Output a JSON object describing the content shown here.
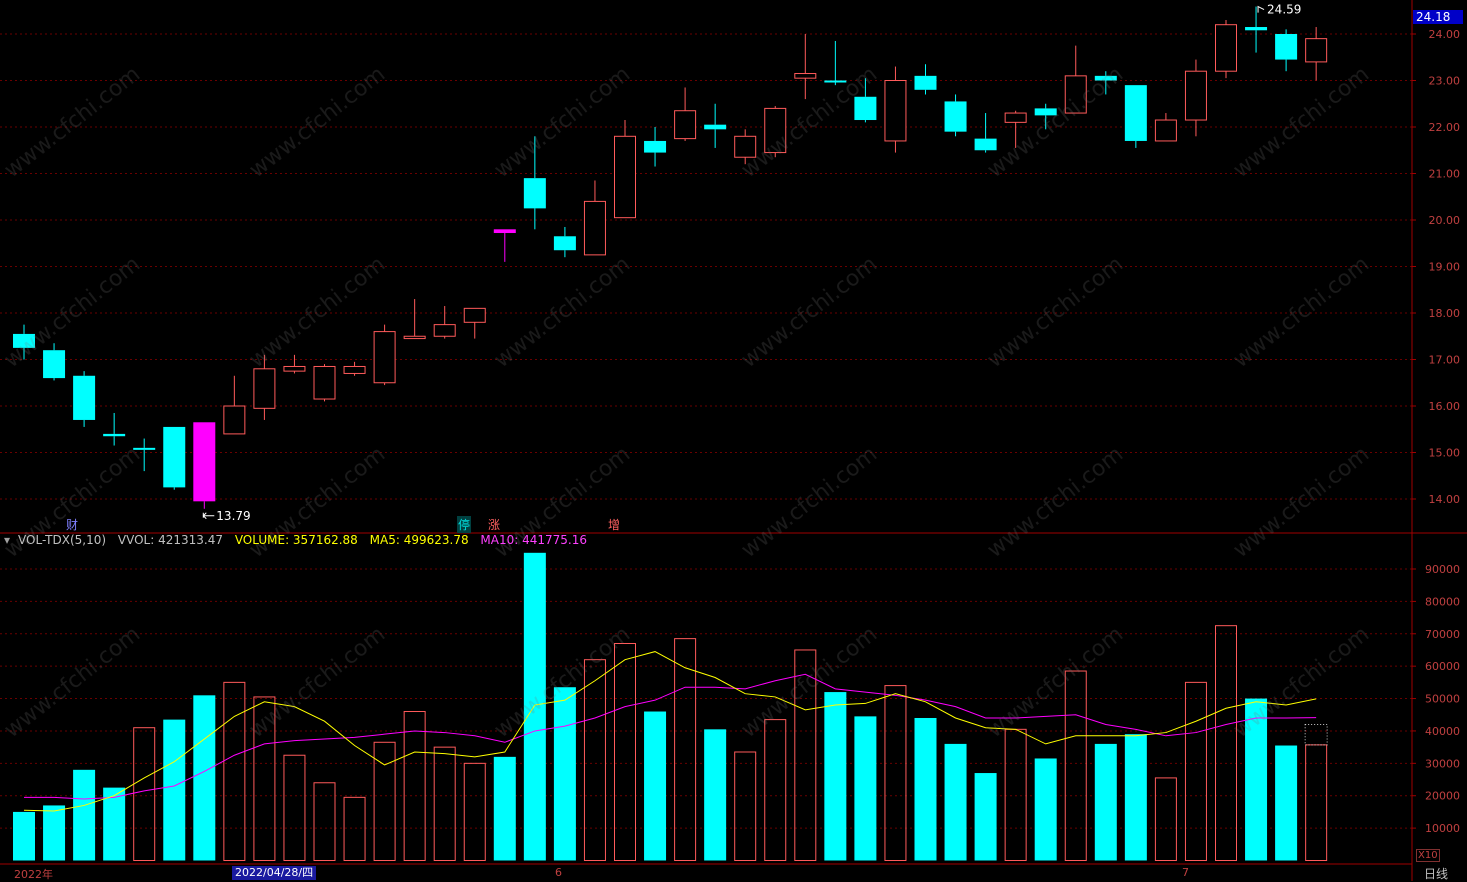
{
  "theme": {
    "up": "#ff5a5a",
    "down": "#00ffff",
    "flat": "#ffffff",
    "special": "#ff00ff",
    "grid": "#6a0000",
    "axis": "#a00000",
    "ma5": "#ffff00",
    "ma10": "#ff00ff"
  },
  "price_axis": {
    "labels": [
      "24.00",
      "23.00",
      "22.00",
      "21.00",
      "20.00",
      "19.00",
      "18.00",
      "17.00",
      "16.00",
      "15.00",
      "14.00"
    ]
  },
  "current_price": "24.18",
  "high_annotation": "24.59",
  "low_annotation": "13.79",
  "markers": [
    {
      "text": "财",
      "color": "#8080ff"
    },
    {
      "text": "停",
      "color": "#00c0c0"
    },
    {
      "text": "涨",
      "color": "#ff6060"
    },
    {
      "text": "增",
      "color": "#ff6060"
    }
  ],
  "volume_header": {
    "indicator": "VOL-TDX(5,10)",
    "vvol": "VVOL: 421313.47",
    "volume": "VOLUME: 357162.88",
    "ma5": "MA5: 499623.78",
    "ma10": "MA10: 441775.16"
  },
  "volume_axis": {
    "labels": [
      "90000",
      "80000",
      "70000",
      "60000",
      "50000",
      "40000",
      "30000",
      "20000",
      "10000"
    ],
    "unit": "X10"
  },
  "x_labels": {
    "year": "2022年",
    "date_box": "2022/04/28/四",
    "m6": "6",
    "m7": "7"
  },
  "period_label": "日线",
  "chart_data": {
    "type": "candlestick",
    "price_range": [
      13.45,
      24.45
    ],
    "volume_range": [
      0,
      100000
    ],
    "candles": [
      {
        "o": 17.55,
        "h": 17.75,
        "l": 17.0,
        "c": 17.25,
        "v": 15000
      },
      {
        "o": 17.2,
        "h": 17.35,
        "l": 16.55,
        "c": 16.6,
        "v": 17000
      },
      {
        "o": 16.65,
        "h": 16.75,
        "l": 15.55,
        "c": 15.7,
        "v": 28000
      },
      {
        "o": 15.4,
        "h": 15.85,
        "l": 15.15,
        "c": 15.35,
        "v": 22500
      },
      {
        "o": 15.1,
        "h": 15.3,
        "l": 14.6,
        "c": 15.1,
        "v": 41000
      },
      {
        "o": 15.55,
        "h": 15.55,
        "l": 14.2,
        "c": 14.25,
        "v": 43500
      },
      {
        "o": 15.65,
        "h": 15.65,
        "l": 13.79,
        "c": 13.95,
        "v": 51000,
        "special": true
      },
      {
        "o": 15.4,
        "h": 16.65,
        "l": 15.4,
        "c": 16.0,
        "v": 55000
      },
      {
        "o": 15.95,
        "h": 17.1,
        "l": 15.7,
        "c": 16.8,
        "v": 50500
      },
      {
        "o": 16.75,
        "h": 17.1,
        "l": 16.7,
        "c": 16.85,
        "v": 32500
      },
      {
        "o": 16.15,
        "h": 16.9,
        "l": 16.1,
        "c": 16.85,
        "v": 24000
      },
      {
        "o": 16.7,
        "h": 16.95,
        "l": 16.65,
        "c": 16.85,
        "v": 19500
      },
      {
        "o": 16.5,
        "h": 17.75,
        "l": 16.45,
        "c": 17.6,
        "v": 36500
      },
      {
        "o": 17.45,
        "h": 18.3,
        "l": 17.45,
        "c": 17.5,
        "v": 46000
      },
      {
        "o": 17.5,
        "h": 18.15,
        "l": 17.45,
        "c": 17.75,
        "v": 35000
      },
      {
        "o": 17.8,
        "h": 18.1,
        "l": 17.45,
        "c": 18.1,
        "v": 30000
      },
      {
        "o": 19.8,
        "h": 19.8,
        "l": 19.1,
        "c": 19.72,
        "v": 32000,
        "special": true
      },
      {
        "o": 20.9,
        "h": 21.8,
        "l": 19.8,
        "c": 20.25,
        "v": 95000
      },
      {
        "o": 19.65,
        "h": 19.85,
        "l": 19.2,
        "c": 19.35,
        "v": 53500
      },
      {
        "o": 19.25,
        "h": 20.85,
        "l": 19.25,
        "c": 20.4,
        "v": 62000
      },
      {
        "o": 20.05,
        "h": 22.15,
        "l": 20.05,
        "c": 21.8,
        "v": 67000
      },
      {
        "o": 21.7,
        "h": 22.0,
        "l": 21.15,
        "c": 21.45,
        "v": 46000
      },
      {
        "o": 21.75,
        "h": 22.85,
        "l": 21.7,
        "c": 22.35,
        "v": 68500
      },
      {
        "o": 22.05,
        "h": 22.5,
        "l": 21.55,
        "c": 21.95,
        "v": 40500
      },
      {
        "o": 21.35,
        "h": 21.95,
        "l": 21.2,
        "c": 21.8,
        "v": 33500
      },
      {
        "o": 21.45,
        "h": 22.45,
        "l": 21.35,
        "c": 22.4,
        "v": 43500
      },
      {
        "o": 23.05,
        "h": 24.0,
        "l": 22.6,
        "c": 23.15,
        "v": 65000
      },
      {
        "o": 23.0,
        "h": 23.85,
        "l": 22.9,
        "c": 22.98,
        "v": 52000
      },
      {
        "o": 22.65,
        "h": 23.05,
        "l": 22.1,
        "c": 22.15,
        "v": 44500
      },
      {
        "o": 21.7,
        "h": 23.3,
        "l": 21.45,
        "c": 23.0,
        "v": 54000
      },
      {
        "o": 23.1,
        "h": 23.35,
        "l": 22.7,
        "c": 22.8,
        "v": 44000
      },
      {
        "o": 22.55,
        "h": 22.7,
        "l": 21.8,
        "c": 21.9,
        "v": 36000
      },
      {
        "o": 21.75,
        "h": 22.3,
        "l": 21.45,
        "c": 21.5,
        "v": 27000
      },
      {
        "o": 22.1,
        "h": 22.35,
        "l": 21.55,
        "c": 22.3,
        "v": 40500
      },
      {
        "o": 22.4,
        "h": 22.5,
        "l": 21.95,
        "c": 22.25,
        "v": 31500
      },
      {
        "o": 22.3,
        "h": 23.75,
        "l": 22.3,
        "c": 23.1,
        "v": 58500
      },
      {
        "o": 23.1,
        "h": 23.2,
        "l": 22.7,
        "c": 23.0,
        "v": 36000
      },
      {
        "o": 22.9,
        "h": 22.9,
        "l": 21.55,
        "c": 21.7,
        "v": 39000
      },
      {
        "o": 21.7,
        "h": 22.3,
        "l": 21.7,
        "c": 22.15,
        "v": 25500
      },
      {
        "o": 22.15,
        "h": 23.45,
        "l": 21.8,
        "c": 23.2,
        "v": 55000
      },
      {
        "o": 23.2,
        "h": 24.3,
        "l": 23.05,
        "c": 24.2,
        "v": 72500
      },
      {
        "o": 24.15,
        "h": 24.59,
        "l": 23.6,
        "c": 24.08,
        "v": 50000
      },
      {
        "o": 24.0,
        "h": 24.1,
        "l": 23.2,
        "c": 23.45,
        "v": 35500
      },
      {
        "o": 23.4,
        "h": 24.15,
        "l": 23.0,
        "c": 23.9,
        "v": 35700
      }
    ],
    "ma5": [
      15500,
      15300,
      17000,
      20000,
      25500,
      30500,
      37500,
      44500,
      49000,
      47500,
      43000,
      35500,
      29500,
      33500,
      33000,
      32000,
      33500,
      48000,
      49500,
      55500,
      62000,
      64500,
      59500,
      56500,
      51500,
      50500,
      46500,
      48000,
      48500,
      51500,
      49000,
      44000,
      41000,
      40500,
      36000,
      38500,
      38500,
      38500,
      39500,
      43000,
      47000,
      49000,
      48000,
      49900
    ],
    "ma10": [
      19500,
      19500,
      19000,
      19500,
      21500,
      23000,
      27500,
      32500,
      36000,
      37000,
      37500,
      38000,
      39000,
      40000,
      39500,
      38500,
      36500,
      40000,
      41500,
      44000,
      47500,
      49500,
      53500,
      53500,
      53000,
      55500,
      57500,
      53000,
      52000,
      51000,
      49500,
      47500,
      44000,
      44000,
      44500,
      45000,
      42000,
      40500,
      38500,
      39500,
      42000,
      44000,
      44000,
      44100
    ]
  }
}
